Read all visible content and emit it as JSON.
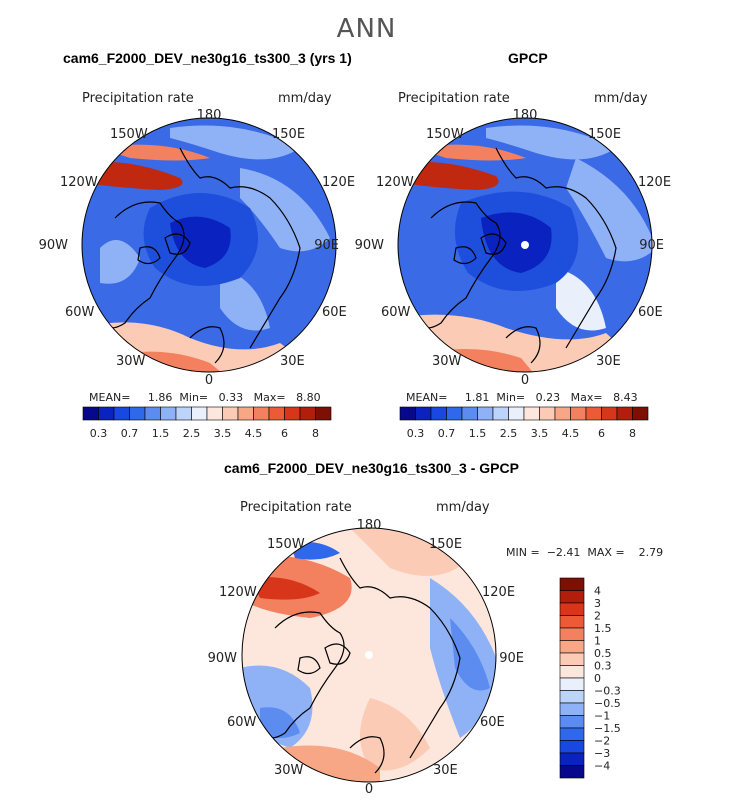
{
  "figure": {
    "season": "ANN"
  },
  "panels": [
    {
      "title": "cam6_F2000_DEV_ne30g16_ts300_3 (yrs 1)",
      "left_label": "Precipitation rate",
      "right_label": "mm/day",
      "stats": {
        "mean_label": "MEAN=",
        "mean": "1.86",
        "min_label": "Min=",
        "min": "0.33",
        "max_label": "Max=",
        "max": "8.80"
      }
    },
    {
      "title": "GPCP",
      "left_label": "Precipitation rate",
      "right_label": "mm/day",
      "stats": {
        "mean_label": "MEAN=",
        "mean": "1.81",
        "min_label": "Min=",
        "min": "0.23",
        "max_label": "Max=",
        "max": "8.43"
      }
    },
    {
      "title": "cam6_F2000_DEV_ne30g16_ts300_3 - GPCP",
      "left_label": "Precipitation rate",
      "right_label": "mm/day",
      "stats": {
        "min_label": "MIN =",
        "min": "−2.41",
        "max_label": "MAX =",
        "max": "2.79"
      }
    }
  ],
  "longitude_labels": {
    "top": "180",
    "bottom": "0",
    "left": "90W",
    "right": "90E",
    "tl1": "150W",
    "tl2": "120W",
    "tr1": "150E",
    "tr2": "120E",
    "bl1": "60W",
    "bl2": "30W",
    "br1": "60E",
    "br2": "30E"
  },
  "abs_colorbar": {
    "labels": [
      "0.3",
      "0.7",
      "1.5",
      "2.5",
      "3.5",
      "4.5",
      "6",
      "8"
    ],
    "colors": [
      "#08088c",
      "#0a22c0",
      "#1848e0",
      "#2f68ea",
      "#5c8cf0",
      "#8fb2f6",
      "#bcd4fa",
      "#e9f0fc",
      "#fde7dc",
      "#fbcbb6",
      "#f7a786",
      "#f3805e",
      "#ec5a36",
      "#d8361a",
      "#b31d0c",
      "#7e0f05"
    ]
  },
  "diff_colorbar": {
    "labels": [
      "4",
      "3",
      "2",
      "1.5",
      "1",
      "0.5",
      "0.3",
      "0",
      "−0.3",
      "−0.5",
      "−1",
      "−1.5",
      "−2",
      "−3",
      "−4"
    ],
    "colors": [
      "#7e0f05",
      "#b31d0c",
      "#d8361a",
      "#ec5a36",
      "#f3805e",
      "#f7a786",
      "#fbcbb6",
      "#fde7dc",
      "#e9f0fc",
      "#bcd4fa",
      "#8fb2f6",
      "#5c8cf0",
      "#2f68ea",
      "#1848e0",
      "#0a22c0",
      "#08088c"
    ]
  },
  "map_palette": {
    "deep_blue": "#1e4fdc",
    "mid_blue": "#3a6ae6",
    "light_blue": "#8fb2f6",
    "pale": "#e9f0fc",
    "light_red": "#fbcbb6",
    "mid_red": "#f3805e",
    "deep_red": "#c0280f",
    "coast": "#000000"
  }
}
